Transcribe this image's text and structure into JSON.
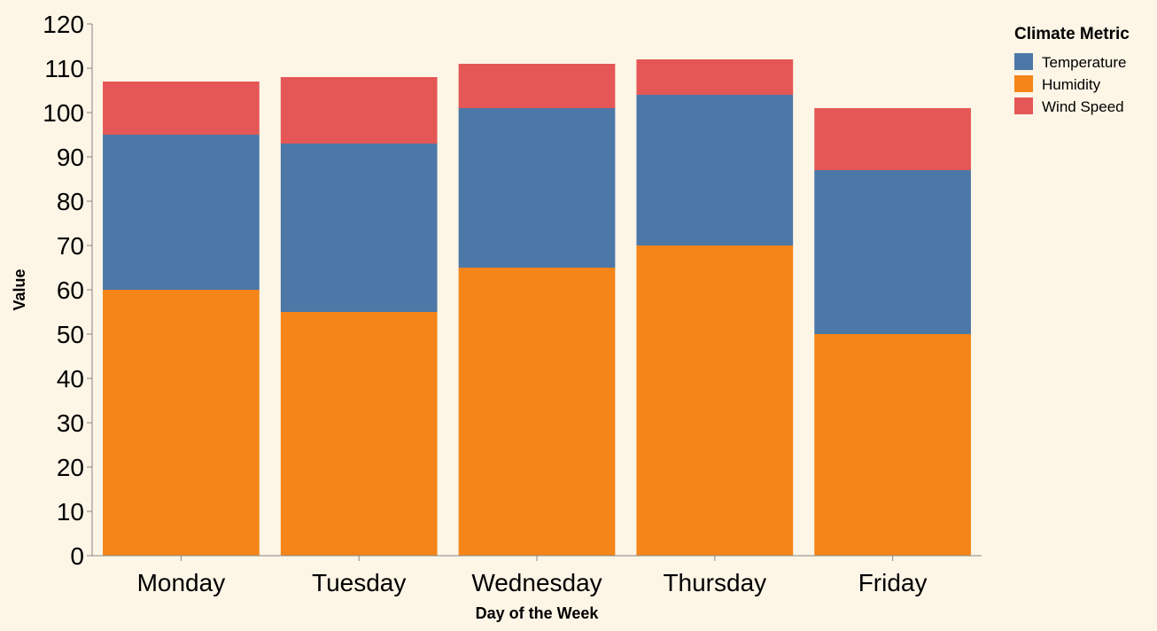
{
  "chart_data": {
    "type": "bar",
    "stacked": true,
    "categories": [
      "Monday",
      "Tuesday",
      "Wednesday",
      "Thursday",
      "Friday"
    ],
    "series": [
      {
        "name": "Humidity",
        "values": [
          60,
          55,
          65,
          70,
          50
        ],
        "color": "#f58518"
      },
      {
        "name": "Temperature",
        "values": [
          35,
          38,
          36,
          34,
          37
        ],
        "color": "#4c78a8"
      },
      {
        "name": "Wind Speed",
        "values": [
          12,
          15,
          10,
          8,
          14
        ],
        "color": "#e45756"
      }
    ],
    "xlabel": "Day of the Week",
    "ylabel": "Value",
    "ylim": [
      0,
      120
    ],
    "yticks": [
      0,
      10,
      20,
      30,
      40,
      50,
      60,
      70,
      80,
      90,
      100,
      110,
      120
    ],
    "grid": false,
    "legend": {
      "title": "Climate Metric",
      "position": "top-right",
      "entries": [
        {
          "label": "Temperature",
          "color": "#4c78a8"
        },
        {
          "label": "Humidity",
          "color": "#f58518"
        },
        {
          "label": "Wind Speed",
          "color": "#e45756"
        }
      ]
    }
  },
  "colors": {
    "background": "#fdf5e6",
    "axis": "#888888"
  }
}
